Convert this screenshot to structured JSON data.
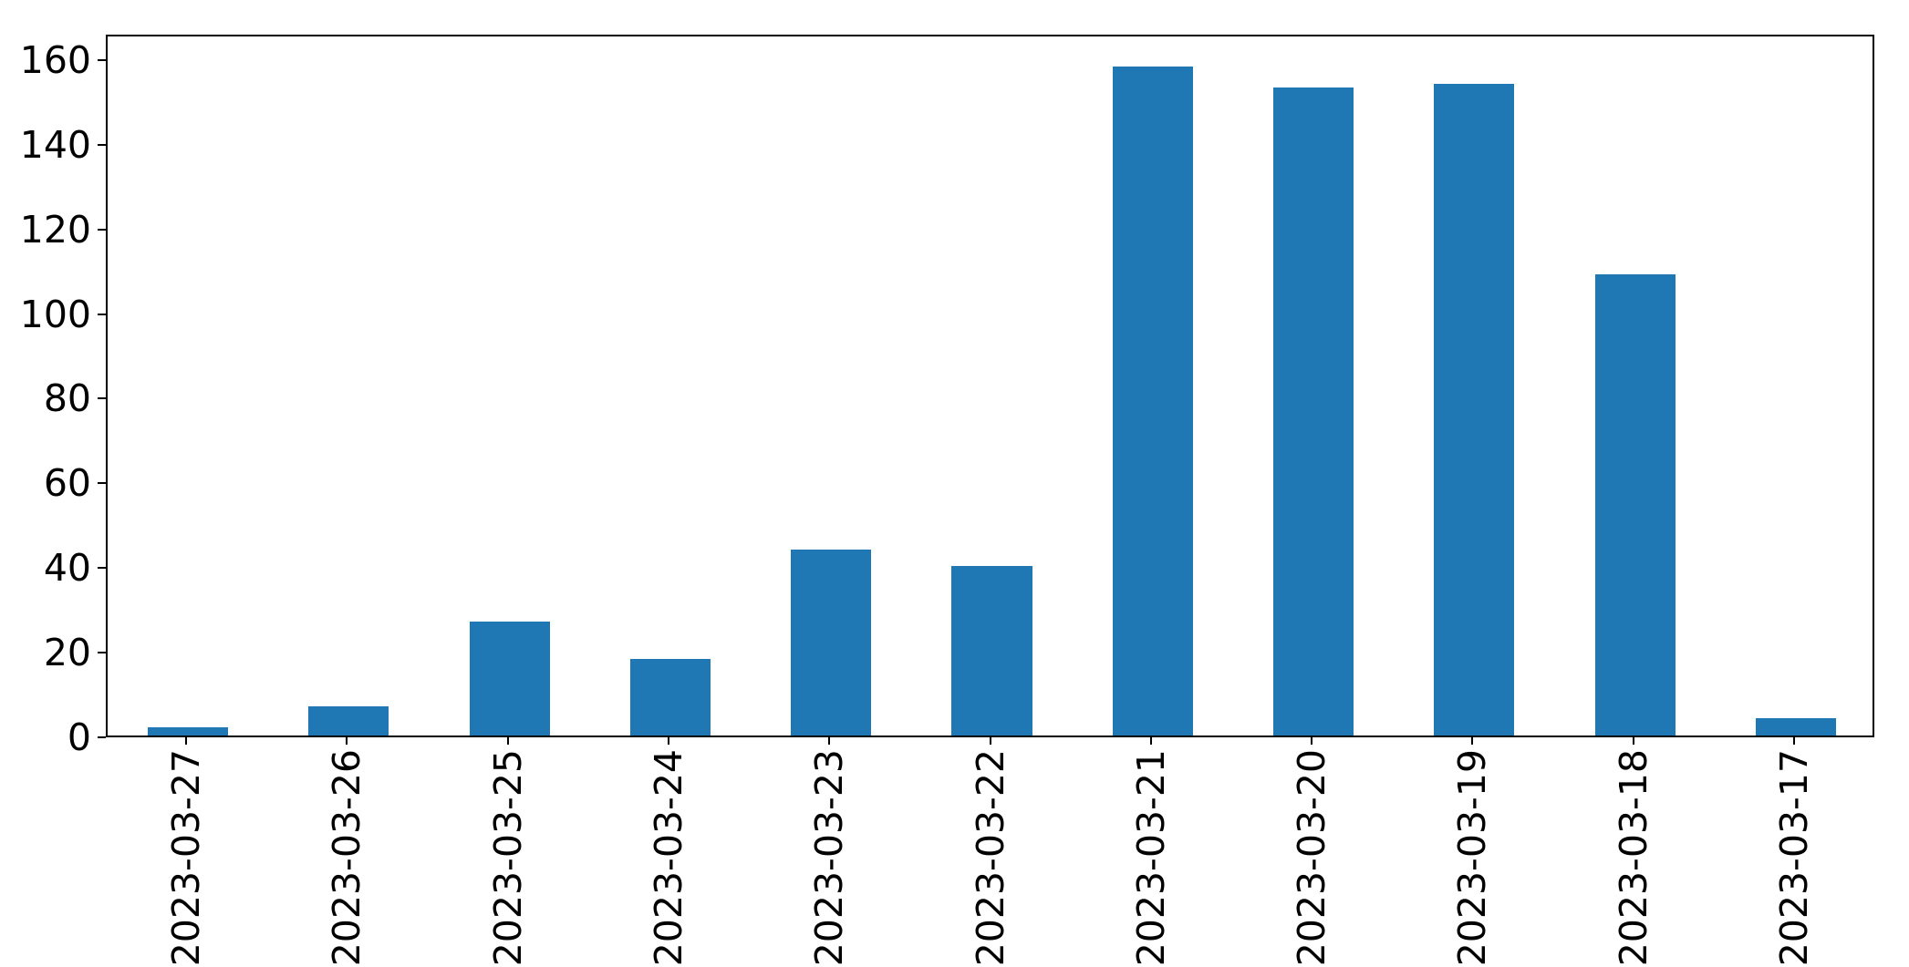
{
  "chart_data": {
    "type": "bar",
    "categories": [
      "2023-03-27",
      "2023-03-26",
      "2023-03-25",
      "2023-03-24",
      "2023-03-23",
      "2023-03-22",
      "2023-03-21",
      "2023-03-20",
      "2023-03-19",
      "2023-03-18",
      "2023-03-17"
    ],
    "values": [
      2,
      7,
      27,
      18,
      44,
      40,
      158,
      153,
      154,
      109,
      4
    ],
    "yticks": [
      0,
      20,
      40,
      60,
      80,
      100,
      120,
      140,
      160
    ],
    "ylim": [
      0,
      166
    ],
    "bar_color": "#1f77b4",
    "bar_width_fraction": 0.5,
    "x_tick_rotation_degrees": 90,
    "grid": false,
    "legend_position": "none",
    "frame_color": "#000000",
    "background_color": "#ffffff"
  }
}
